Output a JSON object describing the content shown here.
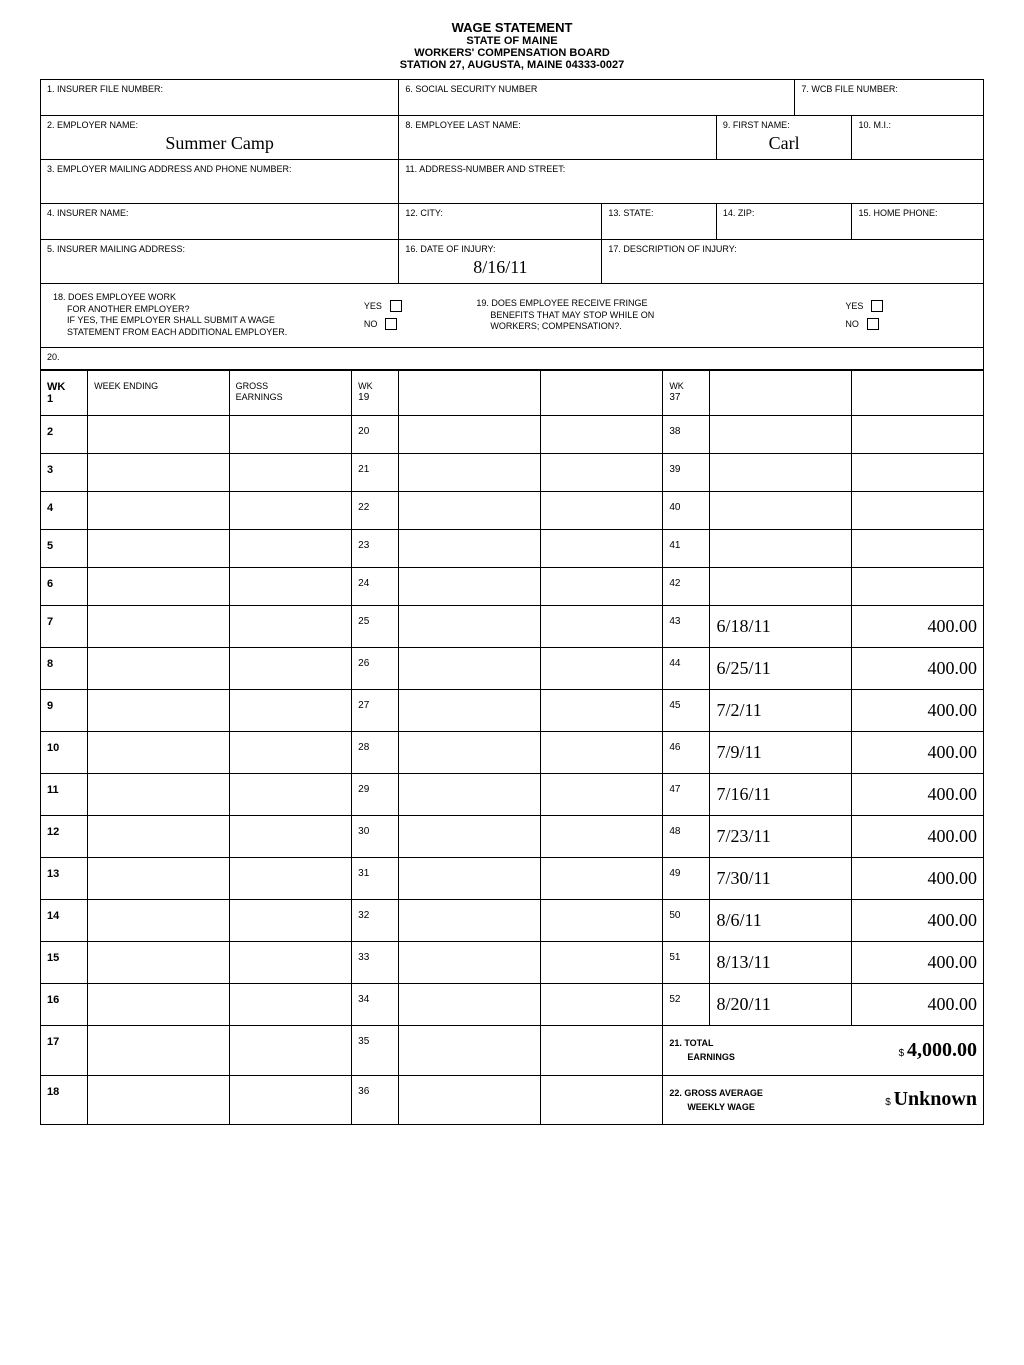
{
  "header": {
    "title": "WAGE STATEMENT",
    "subtitle1": "STATE OF MAINE",
    "subtitle2": "WORKERS' COMPENSATION BOARD",
    "subtitle3": "STATION 27, AUGUSTA, MAINE 04333-0027"
  },
  "fields": {
    "insurer_file_number": "1. INSURER FILE NUMBER:",
    "social_security": "6. SOCIAL SECURITY NUMBER",
    "wcb_file": "7. WCB FILE NUMBER:",
    "employer_name_label": "2. EMPLOYER NAME:",
    "employer_name": "Summer Camp",
    "employee_last_label": "8. EMPLOYEE LAST NAME:",
    "first_name_label": "9. FIRST NAME:",
    "first_name": "Carl",
    "mi_label": "10. M.I.:",
    "employer_address_label": "3. EMPLOYER MAILING ADDRESS AND PHONE NUMBER:",
    "employee_address_label": "11. ADDRESS-NUMBER AND STREET:",
    "insurer_name_label": "4. INSURER NAME:",
    "city_label": "12. CITY:",
    "state_label": "13. STATE:",
    "zip_label": "14. ZIP:",
    "home_phone_label": "15. HOME PHONE:",
    "insurer_mailing_label": "5. INSURER MAILING ADDRESS:",
    "date_injury_label": "16. DATE OF INJURY:",
    "date_injury": "8/16/11",
    "description_injury_label": "17. DESCRIPTION OF INJURY:",
    "q18_line1": "18. DOES EMPLOYEE WORK",
    "q18_line2": "FOR ANOTHER EMPLOYER?",
    "q18_line3": "IF YES, THE EMPLOYER SHALL SUBMIT A WAGE",
    "q18_line4": "STATEMENT FROM EACH ADDITIONAL EMPLOYER.",
    "q19_line1": "19. DOES EMPLOYEE RECEIVE FRINGE",
    "q19_line2": "BENEFITS THAT MAY STOP WHILE ON",
    "q19_line3": "WORKERS; COMPENSATION?.",
    "yes": "YES",
    "no": "NO",
    "q20": "20.",
    "wk_label": "WK",
    "week_ending_label": "WEEK ENDING",
    "gross_earnings_label1": "GROSS",
    "gross_earnings_label2": "EARNINGS",
    "total_earnings_label1": "21. TOTAL",
    "total_earnings_label2": "EARNINGS",
    "total_earnings_value": "4,000.00",
    "gross_avg_label1": "22. GROSS AVERAGE",
    "gross_avg_label2": "WEEKLY WAGE",
    "gross_avg_value": "Unknown",
    "dollar": "$"
  },
  "weeks": [
    {
      "num": "1",
      "header": true
    },
    {
      "num": "2"
    },
    {
      "num": "3"
    },
    {
      "num": "4"
    },
    {
      "num": "5"
    },
    {
      "num": "6"
    },
    {
      "num": "7"
    },
    {
      "num": "8"
    },
    {
      "num": "9"
    },
    {
      "num": "10"
    },
    {
      "num": "11"
    },
    {
      "num": "12"
    },
    {
      "num": "13"
    },
    {
      "num": "14"
    },
    {
      "num": "15"
    },
    {
      "num": "16"
    },
    {
      "num": "17"
    },
    {
      "num": "18"
    }
  ],
  "weeks_col2": [
    {
      "num": "19"
    },
    {
      "num": "20"
    },
    {
      "num": "21"
    },
    {
      "num": "22"
    },
    {
      "num": "23"
    },
    {
      "num": "24"
    },
    {
      "num": "25"
    },
    {
      "num": "26"
    },
    {
      "num": "27"
    },
    {
      "num": "28"
    },
    {
      "num": "29"
    },
    {
      "num": "30"
    },
    {
      "num": "31"
    },
    {
      "num": "32"
    },
    {
      "num": "33"
    },
    {
      "num": "34"
    },
    {
      "num": "35"
    },
    {
      "num": "36"
    }
  ],
  "weeks_col3": [
    {
      "num": "37"
    },
    {
      "num": "38"
    },
    {
      "num": "39"
    },
    {
      "num": "40"
    },
    {
      "num": "41"
    },
    {
      "num": "42"
    },
    {
      "num": "43",
      "date": "6/18/11",
      "amount": "400.00"
    },
    {
      "num": "44",
      "date": "6/25/11",
      "amount": "400.00"
    },
    {
      "num": "45",
      "date": "7/2/11",
      "amount": "400.00"
    },
    {
      "num": "46",
      "date": "7/9/11",
      "amount": "400.00"
    },
    {
      "num": "47",
      "date": "7/16/11",
      "amount": "400.00"
    },
    {
      "num": "48",
      "date": "7/23/11",
      "amount": "400.00"
    },
    {
      "num": "49",
      "date": "7/30/11",
      "amount": "400.00"
    },
    {
      "num": "50",
      "date": "8/6/11",
      "amount": "400.00"
    },
    {
      "num": "51",
      "date": "8/13/11",
      "amount": "400.00"
    },
    {
      "num": "52",
      "date": "8/20/11",
      "amount": "400.00"
    }
  ]
}
